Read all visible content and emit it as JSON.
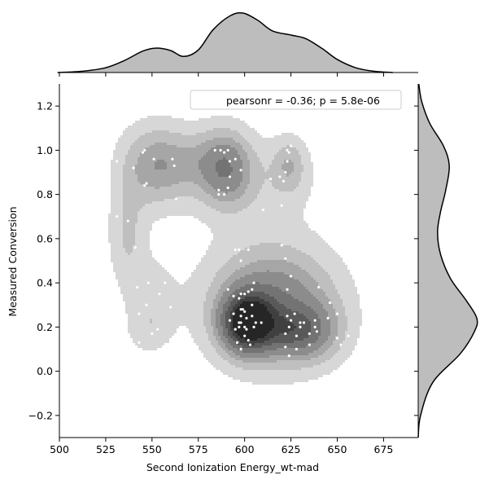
{
  "chart_data": {
    "type": "scatter",
    "subtype": "jointplot-kde",
    "xlabel": "Second Ionization Energy_wt-mad",
    "ylabel": "Measured Conversion",
    "xlim": [
      500,
      688
    ],
    "ylim": [
      -0.3,
      1.3
    ],
    "xticks": [
      500,
      525,
      550,
      575,
      600,
      625,
      650,
      675
    ],
    "yticks": [
      -0.2,
      0.0,
      0.2,
      0.4,
      0.6,
      0.8,
      1.0,
      1.2
    ],
    "xtick_labels": [
      "500",
      "525",
      "550",
      "575",
      "600",
      "625",
      "650",
      "675"
    ],
    "ytick_labels": [
      "−0.2",
      "0.0",
      "0.2",
      "0.4",
      "0.6",
      "0.8",
      "1.0",
      "1.2"
    ],
    "legend": {
      "text": "pearsonr = -0.36; p = 5.8e-06",
      "position": "top-right"
    },
    "grid": false,
    "colors": {
      "kde_levels": [
        "#d7d7d7",
        "#bfbfbf",
        "#a6a6a6",
        "#8c8c8c",
        "#737373",
        "#595959",
        "#404040",
        "#262626"
      ],
      "marginal_fill": "#bdbdbd",
      "marginal_line": "#000000",
      "points": "#ffffff"
    },
    "kde_components": [
      {
        "x": 602,
        "y": 0.22,
        "sx": 9,
        "sy": 0.085,
        "w": 1.0
      },
      {
        "x": 615,
        "y": 0.3,
        "sx": 22,
        "sy": 0.17,
        "w": 0.45
      },
      {
        "x": 625,
        "y": 0.18,
        "sx": 10,
        "sy": 0.07,
        "w": 0.28
      },
      {
        "x": 637,
        "y": 0.18,
        "sx": 11,
        "sy": 0.09,
        "w": 0.22
      },
      {
        "x": 590,
        "y": 0.92,
        "sx": 9,
        "sy": 0.11,
        "w": 0.33
      },
      {
        "x": 551,
        "y": 0.93,
        "sx": 12,
        "sy": 0.12,
        "w": 0.26
      },
      {
        "x": 624,
        "y": 0.93,
        "sx": 6,
        "sy": 0.08,
        "w": 0.18
      },
      {
        "x": 537,
        "y": 0.62,
        "sx": 7,
        "sy": 0.16,
        "w": 0.14
      },
      {
        "x": 550,
        "y": 0.33,
        "sx": 9,
        "sy": 0.12,
        "w": 0.1
      },
      {
        "x": 548,
        "y": 0.18,
        "sx": 8,
        "sy": 0.07,
        "w": 0.07
      },
      {
        "x": 574,
        "y": 0.95,
        "sx": 14,
        "sy": 0.1,
        "w": 0.15
      },
      {
        "x": 603,
        "y": 0.85,
        "sx": 24,
        "sy": 0.14,
        "w": 0.1
      }
    ],
    "kde_levels": [
      0.05,
      0.13,
      0.22,
      0.31,
      0.45,
      0.6,
      0.75,
      0.9
    ],
    "x_marginal": [
      {
        "x": 499,
        "d": 0.0
      },
      {
        "x": 512,
        "d": 0.02
      },
      {
        "x": 525,
        "d": 0.08
      },
      {
        "x": 535,
        "d": 0.2
      },
      {
        "x": 545,
        "d": 0.36
      },
      {
        "x": 552,
        "d": 0.41
      },
      {
        "x": 560,
        "d": 0.37
      },
      {
        "x": 567,
        "d": 0.27
      },
      {
        "x": 575,
        "d": 0.38
      },
      {
        "x": 583,
        "d": 0.72
      },
      {
        "x": 592,
        "d": 0.95
      },
      {
        "x": 599,
        "d": 1.0
      },
      {
        "x": 607,
        "d": 0.88
      },
      {
        "x": 615,
        "d": 0.7
      },
      {
        "x": 625,
        "d": 0.63
      },
      {
        "x": 633,
        "d": 0.57
      },
      {
        "x": 642,
        "d": 0.4
      },
      {
        "x": 650,
        "d": 0.22
      },
      {
        "x": 660,
        "d": 0.08
      },
      {
        "x": 670,
        "d": 0.02
      },
      {
        "x": 680,
        "d": 0.0
      }
    ],
    "y_marginal": [
      {
        "y": -0.3,
        "d": 0.0
      },
      {
        "y": -0.2,
        "d": 0.04
      },
      {
        "y": -0.05,
        "d": 0.25
      },
      {
        "y": 0.08,
        "d": 0.72
      },
      {
        "y": 0.18,
        "d": 0.96
      },
      {
        "y": 0.24,
        "d": 1.0
      },
      {
        "y": 0.32,
        "d": 0.82
      },
      {
        "y": 0.42,
        "d": 0.55
      },
      {
        "y": 0.53,
        "d": 0.38
      },
      {
        "y": 0.63,
        "d": 0.33
      },
      {
        "y": 0.72,
        "d": 0.38
      },
      {
        "y": 0.82,
        "d": 0.47
      },
      {
        "y": 0.93,
        "d": 0.53
      },
      {
        "y": 1.02,
        "d": 0.43
      },
      {
        "y": 1.12,
        "d": 0.2
      },
      {
        "y": 1.22,
        "d": 0.06
      },
      {
        "y": 1.3,
        "d": 0.01
      }
    ],
    "points": [
      [
        531,
        0.95
      ],
      [
        531,
        0.7
      ],
      [
        537,
        0.68
      ],
      [
        540,
        0.92
      ],
      [
        541,
        0.56
      ],
      [
        542,
        0.38
      ],
      [
        543,
        0.26
      ],
      [
        543,
        0.13
      ],
      [
        545,
        0.99
      ],
      [
        546,
        1.0
      ],
      [
        546,
        0.84
      ],
      [
        547,
        0.85
      ],
      [
        548,
        0.4
      ],
      [
        550,
        0.17
      ],
      [
        551,
        0.96
      ],
      [
        553,
        0.19
      ],
      [
        555,
        0.66
      ],
      [
        558,
        0.5
      ],
      [
        560,
        0.29
      ],
      [
        561,
        0.96
      ],
      [
        562,
        0.93
      ],
      [
        565,
        0.56
      ],
      [
        566,
        0.52
      ],
      [
        547,
        0.3
      ],
      [
        554,
        0.35
      ],
      [
        557,
        0.4
      ],
      [
        563,
        0.78
      ],
      [
        584,
        1.0
      ],
      [
        587,
        1.0
      ],
      [
        589,
        0.99
      ],
      [
        591,
        1.0
      ],
      [
        592,
        0.95
      ],
      [
        595,
        0.96
      ],
      [
        598,
        0.91
      ],
      [
        586,
        0.82
      ],
      [
        589,
        0.8
      ],
      [
        591,
        0.83
      ],
      [
        586,
        0.8
      ],
      [
        592,
        0.88
      ],
      [
        595,
        0.55
      ],
      [
        597,
        0.55
      ],
      [
        602,
        0.55
      ],
      [
        598,
        0.5
      ],
      [
        605,
        0.4
      ],
      [
        591,
        0.37
      ],
      [
        594,
        0.34
      ],
      [
        598,
        0.35
      ],
      [
        600,
        0.35
      ],
      [
        602,
        0.36
      ],
      [
        597,
        0.33
      ],
      [
        604,
        0.3
      ],
      [
        604,
        0.25
      ],
      [
        601,
        0.24
      ],
      [
        598,
        0.25
      ],
      [
        597,
        0.2
      ],
      [
        600,
        0.2
      ],
      [
        595,
        0.19
      ],
      [
        601,
        0.19
      ],
      [
        605,
        0.2
      ],
      [
        600,
        0.16
      ],
      [
        603,
        0.12
      ],
      [
        596,
        0.13
      ],
      [
        599,
        0.28
      ],
      [
        598,
        0.22
      ],
      [
        597,
        0.22
      ],
      [
        606,
        0.22
      ],
      [
        609,
        0.22
      ],
      [
        594,
        0.26
      ],
      [
        604,
        0.37
      ],
      [
        598,
        0.28
      ],
      [
        592,
        0.23
      ],
      [
        600,
        0.27
      ],
      [
        602,
        0.14
      ],
      [
        598,
        0.1
      ],
      [
        610,
        0.73
      ],
      [
        614,
        0.87
      ],
      [
        619,
        0.88
      ],
      [
        621,
        0.86
      ],
      [
        623,
        1.0
      ],
      [
        625,
        1.02
      ],
      [
        622,
        0.9
      ],
      [
        624,
        0.99
      ],
      [
        620,
        0.57
      ],
      [
        622,
        0.51
      ],
      [
        625,
        0.43
      ],
      [
        623,
        0.37
      ],
      [
        623,
        0.25
      ],
      [
        624,
        0.2
      ],
      [
        622,
        0.17
      ],
      [
        628,
        0.16
      ],
      [
        630,
        0.2
      ],
      [
        630,
        0.22
      ],
      [
        632,
        0.22
      ],
      [
        635,
        0.17
      ],
      [
        638,
        0.2
      ],
      [
        638,
        0.23
      ],
      [
        640,
        0.38
      ],
      [
        645,
        0.24
      ],
      [
        646,
        0.31
      ],
      [
        650,
        0.26
      ],
      [
        650,
        0.15
      ],
      [
        652,
        0.12
      ],
      [
        656,
        0.16
      ],
      [
        635,
        0.12
      ],
      [
        624,
        0.07
      ],
      [
        625,
        0.23
      ],
      [
        627,
        0.26
      ],
      [
        639,
        0.18
      ],
      [
        622,
        0.11
      ],
      [
        628,
        0.1
      ],
      [
        645,
        0.88
      ],
      [
        646,
        1.0
      ],
      [
        650,
        0.95
      ],
      [
        644,
        0.74
      ],
      [
        620,
        0.75
      ],
      [
        623,
        0.95
      ]
    ]
  }
}
